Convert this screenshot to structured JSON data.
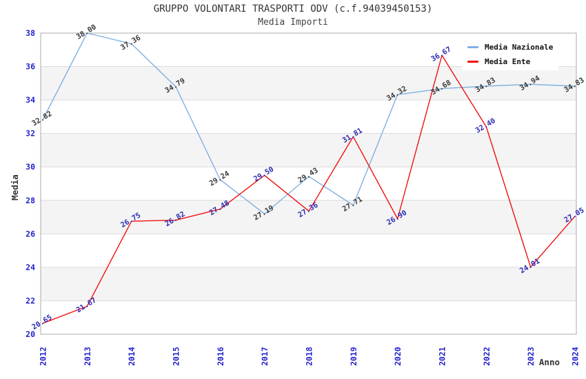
{
  "title": "GRUPPO VOLONTARI TRASPORTI ODV (c.f.94039450153)",
  "subtitle": "Media Importi",
  "legend": {
    "position": "top-right",
    "items": [
      {
        "label": "Media Nazionale",
        "color": "#7EB0E2"
      },
      {
        "label": "Media Ente",
        "color": "#F01010"
      }
    ]
  },
  "chart_data": {
    "type": "line",
    "title": "GRUPPO VOLONTARI TRASPORTI ODV (c.f.94039450153)",
    "subtitle": "Media Importi",
    "x": [
      2012,
      2013,
      2014,
      2015,
      2016,
      2017,
      2018,
      2019,
      2020,
      2021,
      2022,
      2023,
      2024
    ],
    "series": [
      {
        "name": "Media Nazionale",
        "color": "#7EB0E2",
        "label_color": "#3a3a3a",
        "values": [
          32.82,
          38.0,
          37.36,
          34.79,
          29.24,
          27.19,
          29.43,
          27.71,
          34.32,
          34.68,
          34.83,
          34.94,
          34.83
        ]
      },
      {
        "name": "Media Ente",
        "color": "#F01010",
        "label_color": "#2B2BB4",
        "values": [
          20.65,
          21.67,
          26.75,
          26.82,
          27.48,
          29.5,
          27.36,
          31.81,
          26.9,
          36.67,
          32.4,
          24.01,
          27.05
        ]
      }
    ],
    "xlabel": "Anno",
    "ylabel": "Media",
    "ylim": [
      20,
      38
    ],
    "ytick_step": 2,
    "grid": true,
    "legend_position": "top-right",
    "colors": {
      "band": "#f4f4f4",
      "gridline": "#dcdcdc",
      "plot_border": "#ababab",
      "tick_label": "#2323cd",
      "axis_label": "#333333"
    }
  }
}
